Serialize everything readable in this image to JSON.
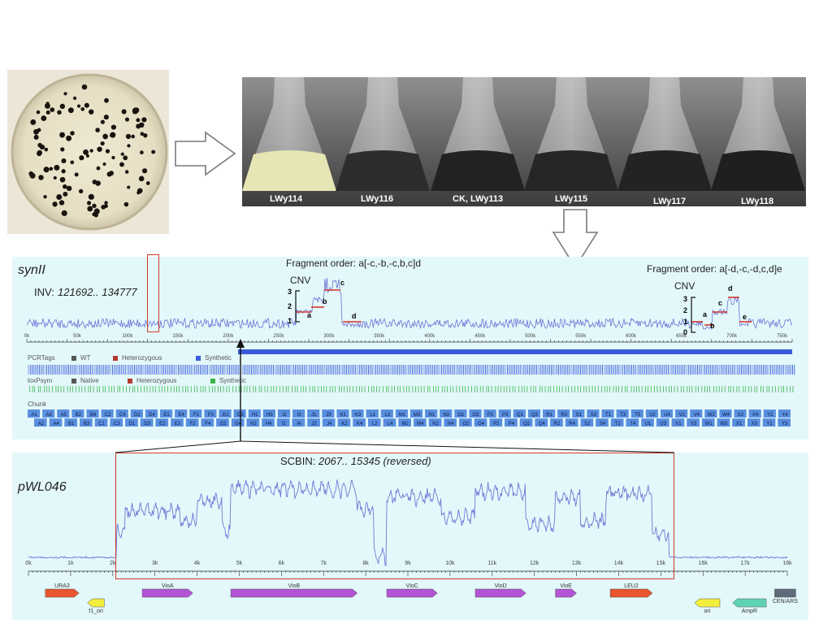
{
  "flask_labels": [
    "LWy114",
    "LWy116",
    "CK, LWy113",
    "LWy115",
    "LWy117",
    "LWy118"
  ],
  "synII": {
    "name": "synII",
    "inversion": {
      "label": "INV:",
      "range": "121692.. 134777"
    },
    "fragment_order_1": "Fragment order: a[-c,-b,-c,b,c]d",
    "fragment_order_2": "Fragment order: a[-d,-c,-d,c,d]e",
    "cnv_label": "CNV",
    "cnv1": {
      "ticks": [
        "3",
        "2",
        "1"
      ],
      "letters": [
        "a",
        "b",
        "c",
        "d"
      ]
    },
    "cnv2": {
      "ticks": [
        "3",
        "2",
        "1",
        "0"
      ],
      "letters": [
        "a",
        "b",
        "c",
        "d",
        "e"
      ]
    },
    "axis_ticks": [
      "0k",
      "50k",
      "100k",
      "150k",
      "200k",
      "250k",
      "300k",
      "350k",
      "400k",
      "450k",
      "500k",
      "550k",
      "600k",
      "650k",
      "700k",
      "750k"
    ],
    "pcrtags": {
      "title": "PCRTags",
      "legend": [
        "WT",
        "Heterozygous",
        "Synthetic"
      ],
      "colors": [
        "#555555",
        "#b23a2e",
        "#3a5bd9"
      ]
    },
    "loxpsym": {
      "title": "loxPsym",
      "legend": [
        "Native",
        "Heterozygous",
        "Synthetic"
      ],
      "colors": [
        "#555555",
        "#b23a2e",
        "#3bb54a"
      ]
    },
    "chunk": {
      "title": "Chunk",
      "row1": [
        "A1",
        "A3",
        "A5",
        "B2",
        "B4",
        "C2",
        "C4",
        "D2",
        "D4",
        "E1",
        "E4",
        "F1",
        "F3",
        "G1",
        "G3",
        "H1",
        "H3",
        "I1",
        "I3",
        "J1",
        "J3",
        "K1",
        "K3",
        "L1",
        "L3",
        "M1",
        "M3",
        "N1",
        "N3",
        "O1",
        "O3",
        "P1",
        "P3",
        "Q1",
        "Q3",
        "R1",
        "R3",
        "S1",
        "S3",
        "T1",
        "T3",
        "T5",
        "U2",
        "U4",
        "V2",
        "V4",
        "W2",
        "W4",
        "X2",
        "X4",
        "Y2",
        "Y4"
      ],
      "row2": [
        "A2",
        "A4",
        "B1",
        "B3",
        "C1",
        "C3",
        "D1",
        "D3",
        "E2",
        "E3",
        "F2",
        "F4",
        "G2",
        "G4",
        "H2",
        "H4",
        "I2",
        "I4",
        "J2",
        "J4",
        "K2",
        "K4",
        "L2",
        "L4",
        "M2",
        "M4",
        "N2",
        "N4",
        "O2",
        "O4",
        "P2",
        "P4",
        "Q2",
        "Q4",
        "R2",
        "R4",
        "S2",
        "S4",
        "T2",
        "T4",
        "U1",
        "U3",
        "V1",
        "V3",
        "W1",
        "W3",
        "X1",
        "X3",
        "Y1",
        "Y3"
      ]
    }
  },
  "pWL046": {
    "name": "pWL046",
    "scbin": {
      "label": "SCBIN:",
      "range": "2067.. 15345 (reversed)"
    },
    "axis_ticks": [
      "0k",
      "1k",
      "2k",
      "3k",
      "4k",
      "5k",
      "6k",
      "7k",
      "8k",
      "9k",
      "10k",
      "11k",
      "12k",
      "13k",
      "14k",
      "15k",
      "16k",
      "17k",
      "18k"
    ],
    "features": [
      {
        "label": "URA3",
        "start": 0.4,
        "end": 1.2,
        "row": 0,
        "color": "#e8552f",
        "dir": "right"
      },
      {
        "label": "f1_ori",
        "start": 1.4,
        "end": 1.8,
        "row": 1,
        "color": "#f2ee3c",
        "dir": "left"
      },
      {
        "label": "VioA",
        "start": 2.7,
        "end": 3.9,
        "row": 0,
        "color": "#b354d6",
        "dir": "right"
      },
      {
        "label": "VioB",
        "start": 4.8,
        "end": 7.8,
        "row": 0,
        "color": "#b354d6",
        "dir": "right"
      },
      {
        "label": "VioC",
        "start": 8.5,
        "end": 9.7,
        "row": 0,
        "color": "#b354d6",
        "dir": "right"
      },
      {
        "label": "VioD",
        "start": 10.6,
        "end": 11.8,
        "row": 0,
        "color": "#b354d6",
        "dir": "right"
      },
      {
        "label": "VioE",
        "start": 12.5,
        "end": 13.0,
        "row": 0,
        "color": "#b354d6",
        "dir": "right"
      },
      {
        "label": "LEU2",
        "start": 13.8,
        "end": 14.8,
        "row": 0,
        "color": "#e8552f",
        "dir": "right"
      },
      {
        "label": "ori",
        "start": 15.8,
        "end": 16.4,
        "row": 1,
        "color": "#f2ee3c",
        "dir": "left"
      },
      {
        "label": "AmpR",
        "start": 16.7,
        "end": 17.5,
        "row": 1,
        "color": "#5ed3b4",
        "dir": "left"
      },
      {
        "label": "CEN/ARS",
        "start": 17.7,
        "end": 18.2,
        "row": 0,
        "color": "#5d6b7a",
        "dir": "none"
      }
    ]
  }
}
